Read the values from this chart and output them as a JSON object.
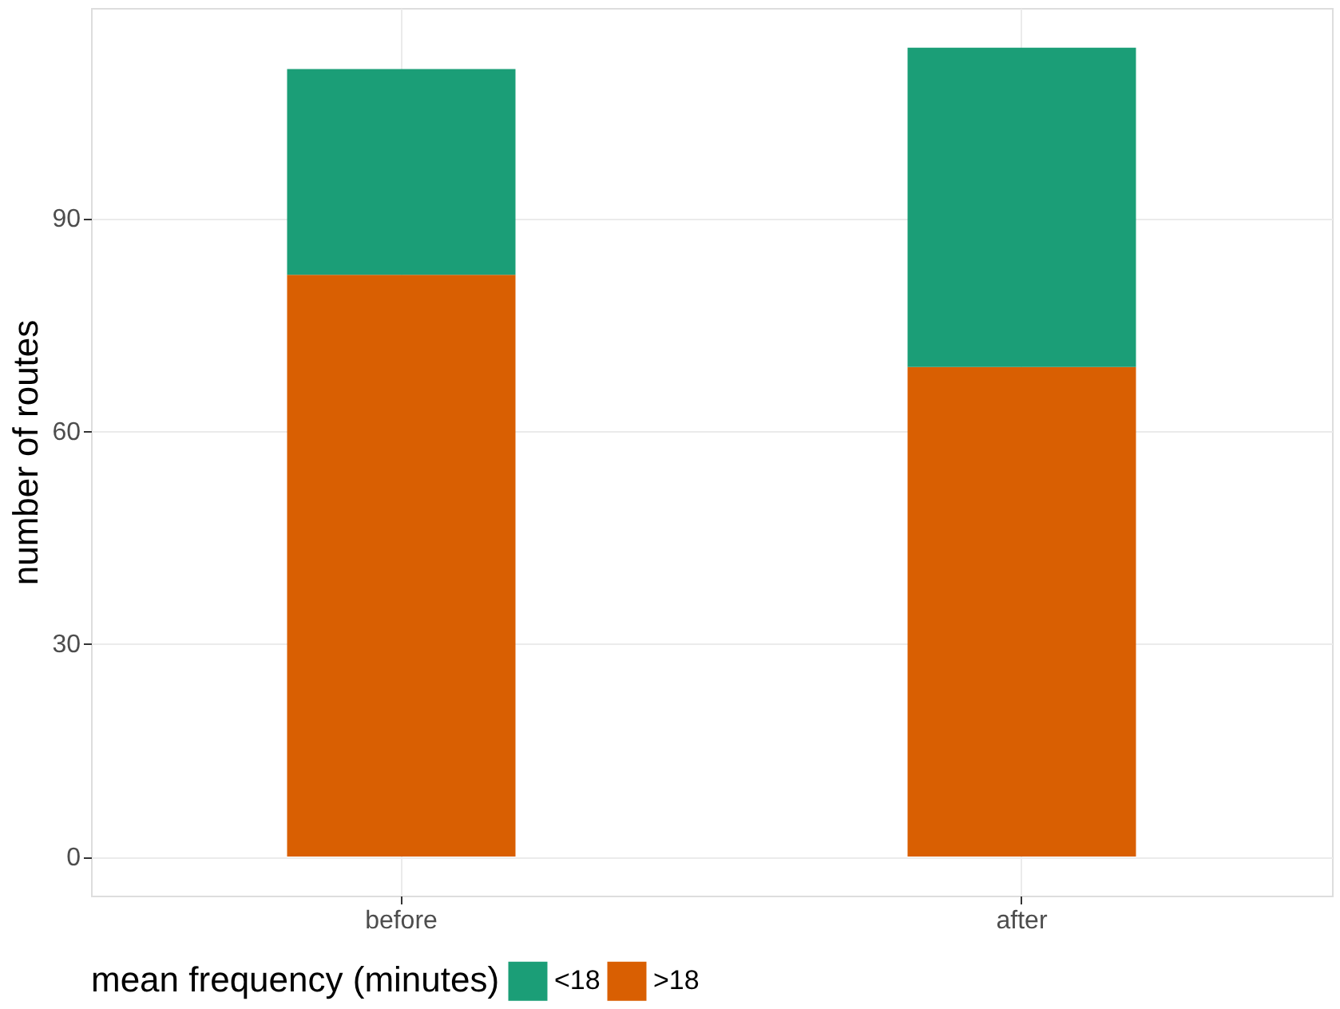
{
  "chart_data": {
    "type": "bar",
    "stacked": true,
    "ylabel": "number of routes",
    "legend_title": "mean frequency (minutes)",
    "legend": "bottom",
    "grid": true,
    "categories": [
      "before",
      "after"
    ],
    "series": [
      {
        "name": ">18",
        "color": "#d95f02",
        "values": [
          82,
          69
        ]
      },
      {
        "name": "<18",
        "color": "#1b9e77",
        "values": [
          29,
          45
        ]
      }
    ],
    "ylim": [
      -5.5,
      119.6
    ],
    "yticks": [
      0,
      30,
      60,
      90
    ]
  }
}
